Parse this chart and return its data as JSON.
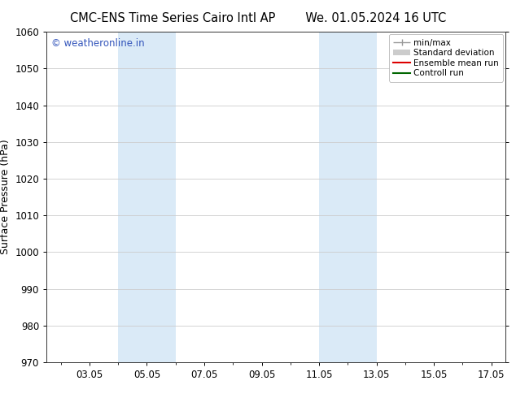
{
  "title_left": "CMC-ENS Time Series Cairo Intl AP",
  "title_right": "We. 01.05.2024 16 UTC",
  "ylabel": "Surface Pressure (hPa)",
  "ylim": [
    970,
    1060
  ],
  "yticks": [
    970,
    980,
    990,
    1000,
    1010,
    1020,
    1030,
    1040,
    1050,
    1060
  ],
  "xlim_start": 1.5,
  "xlim_end": 17.5,
  "xtick_labels": [
    "03.05",
    "05.05",
    "07.05",
    "09.05",
    "11.05",
    "13.05",
    "15.05",
    "17.05"
  ],
  "xtick_positions": [
    3.0,
    5.0,
    7.0,
    9.0,
    11.0,
    13.0,
    15.0,
    17.0
  ],
  "shaded_bands": [
    {
      "x_start": 4.0,
      "x_end": 6.0
    },
    {
      "x_start": 11.0,
      "x_end": 13.0
    }
  ],
  "shaded_color": "#daeaf7",
  "watermark_text": "© weatheronline.in",
  "watermark_color": "#3355bb",
  "legend_entries": [
    {
      "label": "min/max",
      "color": "#999999",
      "lw": 1.0
    },
    {
      "label": "Standard deviation",
      "color": "#cccccc",
      "lw": 5
    },
    {
      "label": "Ensemble mean run",
      "color": "#dd0000",
      "lw": 1.5
    },
    {
      "label": "Controll run",
      "color": "#006600",
      "lw": 1.5
    }
  ],
  "bg_color": "#ffffff",
  "grid_color": "#cccccc",
  "tick_fontsize": 8.5,
  "label_fontsize": 9,
  "title_fontsize": 10.5
}
